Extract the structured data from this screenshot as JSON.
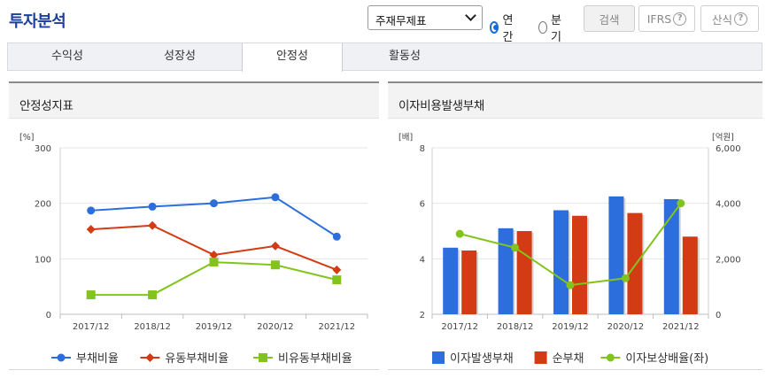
{
  "header": {
    "title": "투자분석",
    "select_value": "주재무제표",
    "radio_annual": "연간",
    "radio_quarter": "분기",
    "search_label": "검색",
    "ifrs_label": "IFRS",
    "formula_label": "산식",
    "help_glyph": "?"
  },
  "tabs": [
    {
      "label": "수익성",
      "active": false
    },
    {
      "label": "성장성",
      "active": false
    },
    {
      "label": "안정성",
      "active": true
    },
    {
      "label": "활동성",
      "active": false
    }
  ],
  "left_chart": {
    "panel_title": "안정성지표"
  },
  "right_chart": {
    "panel_title": "이자비용발생부채"
  },
  "chart_data": [
    {
      "type": "line",
      "title": "안정성지표",
      "ylabel": "[%]",
      "ylim": [
        0,
        300
      ],
      "yticks": [
        0,
        100,
        200,
        300
      ],
      "categories": [
        "2017/12",
        "2018/12",
        "2019/12",
        "2020/12",
        "2021/12"
      ],
      "grid": true,
      "legend_position": "bottom",
      "series": [
        {
          "name": "부채비율",
          "color": "#2c6fdc",
          "marker": "circle",
          "values": [
            187,
            194,
            200,
            211,
            140
          ]
        },
        {
          "name": "유동부채비율",
          "color": "#d23b14",
          "marker": "diamond",
          "values": [
            153,
            160,
            107,
            123,
            80
          ]
        },
        {
          "name": "비유동부채비율",
          "color": "#83c31d",
          "marker": "square",
          "values": [
            35,
            35,
            94,
            89,
            62
          ]
        }
      ]
    },
    {
      "type": "bar",
      "title": "이자비용발생부채",
      "ylabel": "[배]",
      "y2label": "[억원]",
      "ylim": [
        2,
        8
      ],
      "yticks": [
        2,
        4,
        6,
        8
      ],
      "y2lim": [
        0,
        6000
      ],
      "y2ticks": [
        "0",
        "2,000",
        "4,000",
        "6,000"
      ],
      "categories": [
        "2017/12",
        "2018/12",
        "2019/12",
        "2020/12",
        "2021/12"
      ],
      "grid": true,
      "legend_position": "bottom",
      "series": [
        {
          "name": "이자발생부채",
          "type": "bar",
          "axis": "right",
          "color": "#2c6fdc",
          "values": [
            2400,
            3100,
            3750,
            4250,
            4150
          ]
        },
        {
          "name": "순부채",
          "type": "bar",
          "axis": "right",
          "color": "#d23b14",
          "values": [
            2300,
            3000,
            3550,
            3650,
            2800
          ]
        },
        {
          "name": "이자보상배율(좌)",
          "type": "line",
          "axis": "left",
          "color": "#83c31d",
          "values": [
            4.9,
            4.4,
            3.05,
            3.3,
            6.0
          ]
        }
      ]
    }
  ]
}
